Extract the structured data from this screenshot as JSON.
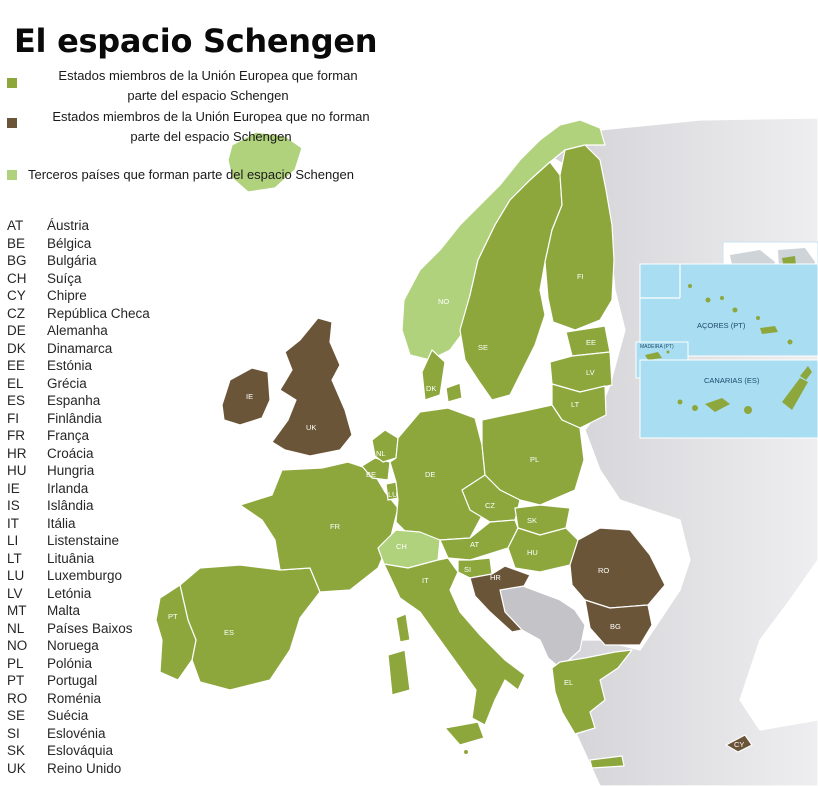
{
  "title": "El espacio Schengen",
  "colors": {
    "eu_schengen": "#8da73d",
    "eu_non_schengen": "#6b5538",
    "third_schengen": "#b0d27d",
    "non_member": "#cbcbcf",
    "sea_box": "#a9ddf2"
  },
  "legend": [
    {
      "line1": "Estados miembros de la Unión Europea que forman",
      "line2": "parte del espacio Schengen",
      "color": "#8da73d"
    },
    {
      "line1": "Estados miembros de la Unión Europea que no forman",
      "line2": "parte del espacio Schengen",
      "color": "#6b5538"
    },
    {
      "line1": "Terceros países que forman parte del espacio Schengen",
      "line2": "",
      "color": "#b0d27d"
    }
  ],
  "countries": [
    {
      "code": "AT",
      "name": "Áustria"
    },
    {
      "code": "BE",
      "name": "Bélgica"
    },
    {
      "code": "BG",
      "name": "Bulgária"
    },
    {
      "code": "CH",
      "name": "Suíça"
    },
    {
      "code": "CY",
      "name": "Chipre"
    },
    {
      "code": "CZ",
      "name": "República Checa"
    },
    {
      "code": "DE",
      "name": "Alemanha"
    },
    {
      "code": "DK",
      "name": "Dinamarca"
    },
    {
      "code": "EE",
      "name": "Estónia"
    },
    {
      "code": "EL",
      "name": "Grécia"
    },
    {
      "code": "ES",
      "name": "Espanha"
    },
    {
      "code": "FI",
      "name": "Finlândia"
    },
    {
      "code": "FR",
      "name": "França"
    },
    {
      "code": "HR",
      "name": "Croácia"
    },
    {
      "code": "HU",
      "name": "Hungria"
    },
    {
      "code": "IE",
      "name": "Irlanda"
    },
    {
      "code": "IS",
      "name": "Islândia"
    },
    {
      "code": "IT",
      "name": "Itália"
    },
    {
      "code": "LI",
      "name": "Listenstaine"
    },
    {
      "code": "LT",
      "name": "Lituânia"
    },
    {
      "code": "LU",
      "name": "Luxemburgo"
    },
    {
      "code": "LV",
      "name": "Letónia"
    },
    {
      "code": "MT",
      "name": "Malta"
    },
    {
      "code": "NL",
      "name": "Países Baixos"
    },
    {
      "code": "NO",
      "name": "Noruega"
    },
    {
      "code": "PL",
      "name": "Polónia"
    },
    {
      "code": "PT",
      "name": "Portugal"
    },
    {
      "code": "RO",
      "name": "Roménia"
    },
    {
      "code": "SE",
      "name": "Suécia"
    },
    {
      "code": "SI",
      "name": "Eslovénia"
    },
    {
      "code": "SK",
      "name": "Eslováquia"
    },
    {
      "code": "UK",
      "name": "Reino Unido"
    }
  ],
  "map_labels": {
    "AT": "AT",
    "BE": "BE",
    "BG": "BG",
    "CH": "CH",
    "CY": "CY",
    "CZ": "CZ",
    "DE": "DE",
    "DK": "DK",
    "EE": "EE",
    "EL": "EL",
    "ES": "ES",
    "FI": "FI",
    "FR": "FR",
    "HR": "HR",
    "HU": "HU",
    "IE": "IE",
    "IT": "IT",
    "LT": "LT",
    "LU": "LU",
    "LV": "LV",
    "MT": "MT",
    "NL": "NL",
    "NO": "NO",
    "PL": "PL",
    "PT": "PT",
    "RO": "RO",
    "SE": "SE",
    "SI": "SI",
    "SK": "SK",
    "UK": "UK"
  },
  "insets": {
    "azores": "AÇORES (PT)",
    "madeira": "MADEIRA (PT)",
    "canarias": "CANARIAS (ES)",
    "world_1": "AÇORES",
    "world_2": "MADEIRA",
    "world_3": "CANARIAS"
  }
}
